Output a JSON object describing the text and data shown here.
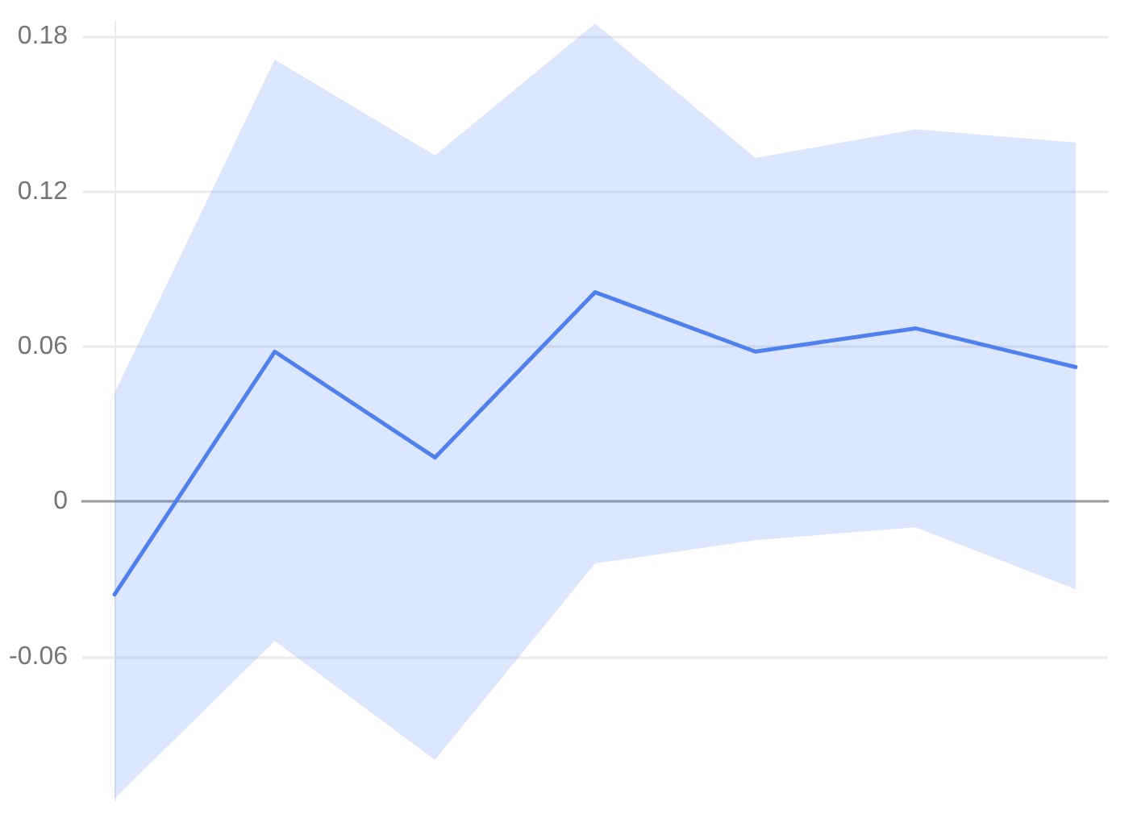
{
  "chart_data": {
    "type": "line",
    "categories": [
      null,
      null,
      null,
      null,
      null,
      null,
      null
    ],
    "series": [
      {
        "color": "#4e81ee",
        "values": [
          -0.036,
          0.058,
          0.017,
          0.081,
          0.058,
          0.067,
          0.052
        ],
        "lower": [
          -0.115,
          -0.054,
          -0.1,
          -0.024,
          -0.015,
          -0.01,
          -0.034
        ],
        "upper": [
          0.042,
          0.171,
          0.134,
          0.185,
          0.133,
          0.144,
          0.139
        ]
      }
    ],
    "ylim": [
      -0.116,
      0.186
    ],
    "yticks": [
      -0.06,
      0,
      0.06,
      0.12,
      0.18
    ],
    "grid": "y",
    "marker": "none"
  }
}
